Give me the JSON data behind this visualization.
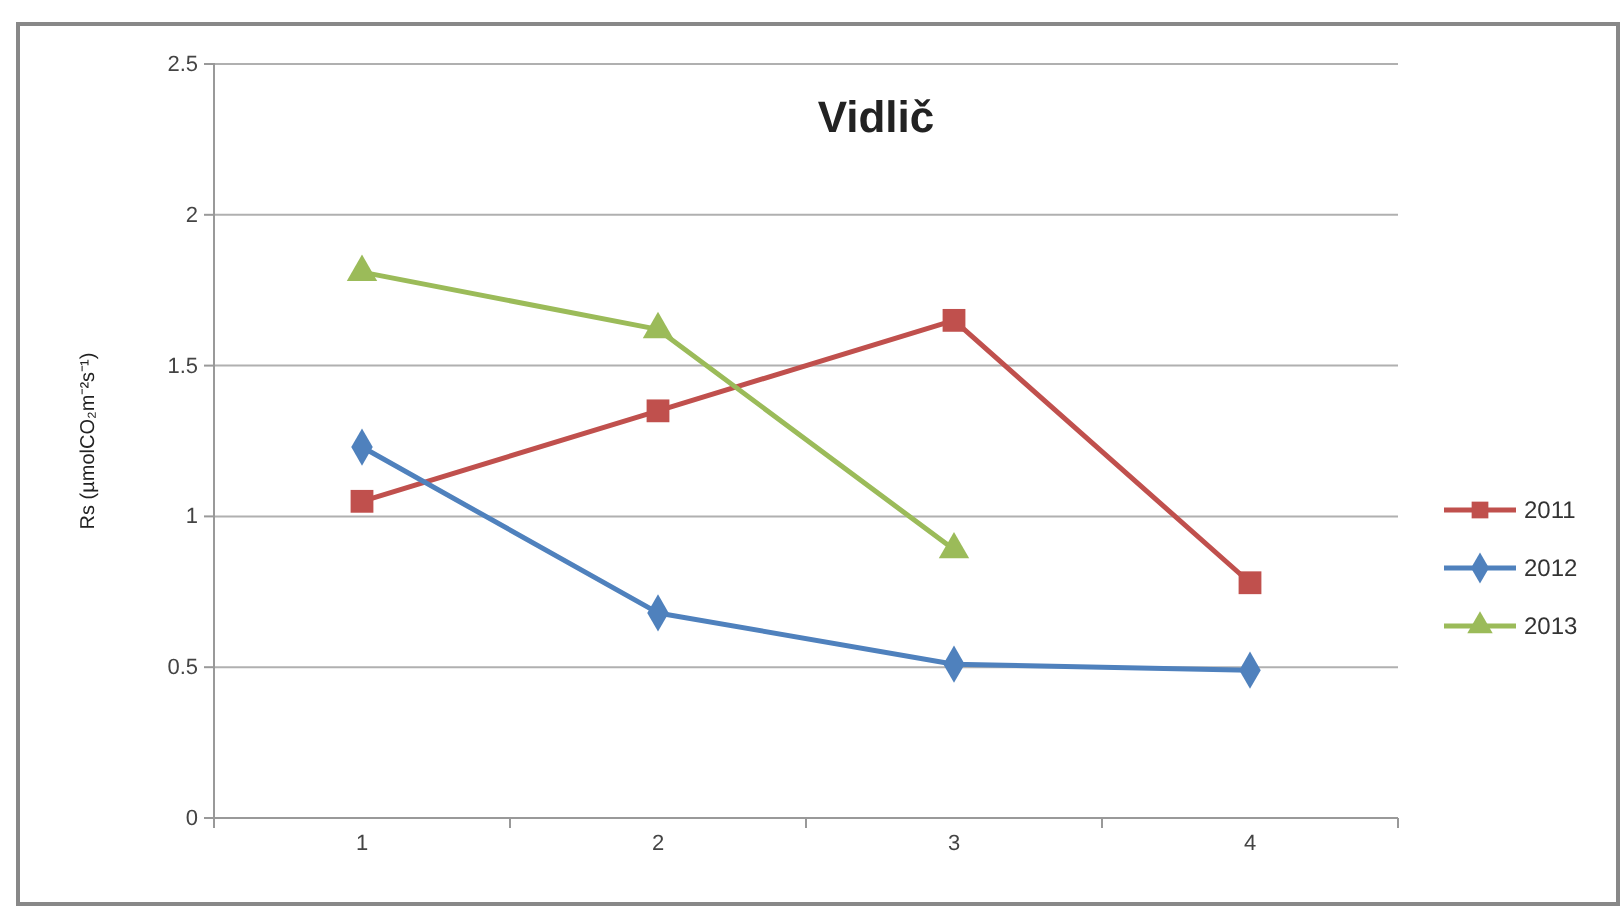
{
  "chart_data": {
    "type": "line",
    "title": "Vidlič",
    "ylabel": "Rs (µmolCO₂m⁻²s⁻¹)",
    "categories": [
      "1",
      "2",
      "3",
      "4"
    ],
    "series": [
      {
        "name": "2011",
        "color": "#c0504d",
        "marker": "square",
        "values": [
          1.05,
          1.35,
          1.65,
          0.78
        ]
      },
      {
        "name": "2012",
        "color": "#4f81bd",
        "marker": "diamond",
        "values": [
          1.23,
          0.68,
          0.51,
          0.49
        ]
      },
      {
        "name": "2013",
        "color": "#9bbb59",
        "marker": "triangle",
        "values": [
          1.81,
          1.62,
          0.89,
          null
        ]
      }
    ],
    "ylim": [
      0,
      2.5
    ],
    "yticks": [
      0,
      0.5,
      1,
      1.5,
      2,
      2.5
    ],
    "grid": "y",
    "legend": "right"
  }
}
